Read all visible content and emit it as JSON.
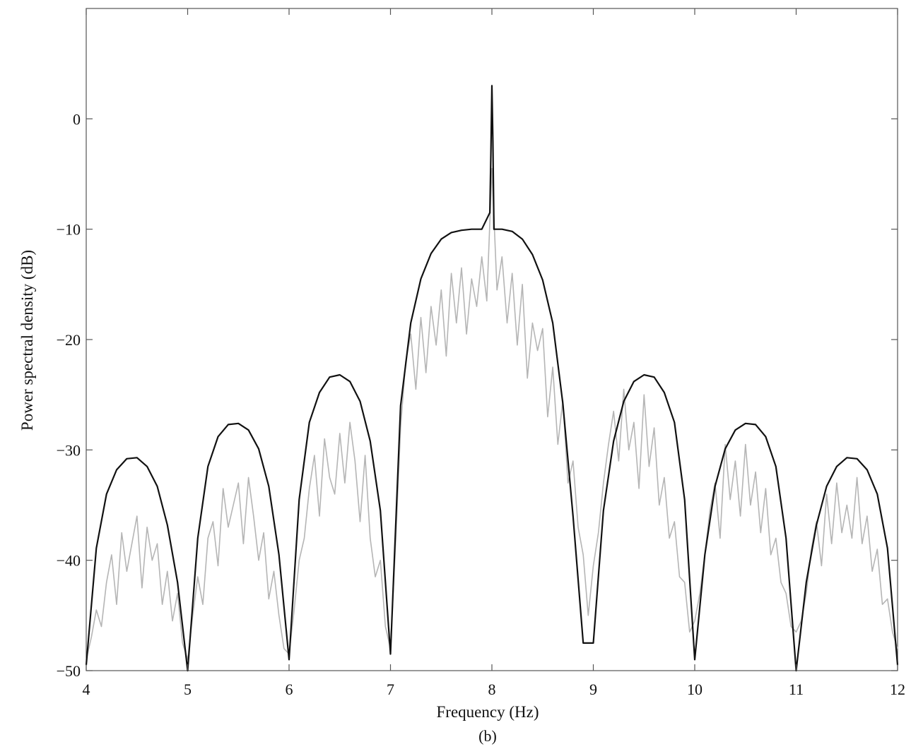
{
  "chart_data": {
    "type": "line",
    "xlabel": "Frequency (Hz)",
    "ylabel": "Power spectral density (dB)",
    "caption": "(b)",
    "xlim": [
      4,
      12
    ],
    "ylim": [
      -50,
      10
    ],
    "x_ticks": [
      4,
      5,
      6,
      7,
      8,
      9,
      10,
      11,
      12
    ],
    "y_ticks": [
      0,
      -10,
      -20,
      -30,
      -40,
      -50
    ],
    "x_tick_labels": [
      "4",
      "5",
      "6",
      "7",
      "8",
      "9",
      "10",
      "11",
      "12"
    ],
    "y_tick_labels": [
      "0",
      "−10",
      "−20",
      "−30",
      "−40",
      "−50"
    ],
    "grid": false,
    "colors": {
      "theoretical": "#111111",
      "estimate": "#b5b5b5",
      "axes": "#555555"
    },
    "series": [
      {
        "role": "theoretical",
        "x": [
          4.0,
          4.1,
          4.2,
          4.3,
          4.4,
          4.5,
          4.6,
          4.7,
          4.8,
          4.9,
          5.0,
          5.1,
          5.2,
          5.3,
          5.4,
          5.5,
          5.6,
          5.7,
          5.8,
          5.9,
          6.0,
          6.1,
          6.2,
          6.3,
          6.4,
          6.5,
          6.6,
          6.7,
          6.8,
          6.9,
          7.0,
          7.1,
          7.2,
          7.3,
          7.4,
          7.5,
          7.6,
          7.7,
          7.8,
          7.9,
          7.98,
          7.99,
          8.0,
          8.01,
          8.02,
          8.1,
          8.2,
          8.3,
          8.4,
          8.5,
          8.6,
          8.7,
          8.8,
          8.9,
          9.0,
          9.1,
          9.2,
          9.3,
          9.4,
          9.5,
          9.6,
          9.7,
          9.8,
          9.9,
          10.0,
          10.1,
          10.2,
          10.3,
          10.4,
          10.5,
          10.6,
          10.7,
          10.8,
          10.9,
          11.0,
          11.1,
          11.2,
          11.3,
          11.4,
          11.5,
          11.6,
          11.7,
          11.8,
          11.9,
          12.0
        ],
        "y": [
          -49.5,
          -38.9,
          -34.0,
          -31.8,
          -30.8,
          -30.7,
          -31.5,
          -33.3,
          -36.8,
          -42.0,
          -50.0,
          -38.0,
          -31.5,
          -28.8,
          -27.7,
          -27.6,
          -28.2,
          -29.9,
          -33.3,
          -39.5,
          -49.0,
          -34.5,
          -27.5,
          -24.8,
          -23.4,
          -23.2,
          -23.8,
          -25.6,
          -29.2,
          -35.5,
          -48.5,
          -26.0,
          -18.5,
          -14.5,
          -12.2,
          -10.9,
          -10.3,
          -10.1,
          -10.0,
          -10.0,
          -8.5,
          -3.0,
          3.0,
          -2.0,
          -10.0,
          -10.0,
          -10.2,
          -10.9,
          -12.3,
          -14.6,
          -18.5,
          -25.8,
          -36.0,
          -47.5,
          -47.5,
          -35.5,
          -29.2,
          -25.6,
          -23.8,
          -23.2,
          -23.4,
          -24.8,
          -27.5,
          -34.5,
          -49.0,
          -39.5,
          -33.3,
          -29.9,
          -28.2,
          -27.6,
          -27.7,
          -28.8,
          -31.5,
          -38.0,
          -50.0,
          -42.0,
          -36.8,
          -33.3,
          -31.5,
          -30.7,
          -30.8,
          -31.8,
          -34.0,
          -38.9,
          -49.5
        ]
      },
      {
        "role": "estimate",
        "x": [
          4.0,
          4.05,
          4.1,
          4.15,
          4.2,
          4.25,
          4.3,
          4.35,
          4.4,
          4.45,
          4.5,
          4.55,
          4.6,
          4.65,
          4.7,
          4.75,
          4.8,
          4.85,
          4.9,
          4.95,
          5.0,
          5.05,
          5.1,
          5.15,
          5.2,
          5.25,
          5.3,
          5.35,
          5.4,
          5.45,
          5.5,
          5.55,
          5.6,
          5.65,
          5.7,
          5.75,
          5.8,
          5.85,
          5.9,
          5.95,
          6.0,
          6.05,
          6.1,
          6.15,
          6.2,
          6.25,
          6.3,
          6.35,
          6.4,
          6.45,
          6.5,
          6.55,
          6.6,
          6.65,
          6.7,
          6.75,
          6.8,
          6.85,
          6.9,
          6.95,
          7.0,
          7.05,
          7.1,
          7.15,
          7.2,
          7.25,
          7.3,
          7.35,
          7.4,
          7.45,
          7.5,
          7.55,
          7.6,
          7.65,
          7.7,
          7.75,
          7.8,
          7.85,
          7.9,
          7.95,
          8.0,
          8.05,
          8.1,
          8.15,
          8.2,
          8.25,
          8.3,
          8.35,
          8.4,
          8.45,
          8.5,
          8.55,
          8.6,
          8.65,
          8.7,
          8.75,
          8.8,
          8.85,
          8.9,
          8.95,
          9.0,
          9.05,
          9.1,
          9.15,
          9.2,
          9.25,
          9.3,
          9.35,
          9.4,
          9.45,
          9.5,
          9.55,
          9.6,
          9.65,
          9.7,
          9.75,
          9.8,
          9.85,
          9.9,
          9.95,
          10.0,
          10.05,
          10.1,
          10.15,
          10.2,
          10.25,
          10.3,
          10.35,
          10.4,
          10.45,
          10.5,
          10.55,
          10.6,
          10.65,
          10.7,
          10.75,
          10.8,
          10.85,
          10.9,
          10.95,
          11.0,
          11.05,
          11.1,
          11.15,
          11.2,
          11.25,
          11.3,
          11.35,
          11.4,
          11.45,
          11.5,
          11.55,
          11.6,
          11.65,
          11.7,
          11.75,
          11.8,
          11.85,
          11.9,
          11.95,
          12.0
        ],
        "y": [
          -49.0,
          -47.0,
          -44.5,
          -46.0,
          -42.0,
          -39.5,
          -44.0,
          -37.5,
          -41.0,
          -38.5,
          -36.0,
          -42.5,
          -37.0,
          -40.0,
          -38.5,
          -44.0,
          -41.0,
          -45.5,
          -43.0,
          -47.5,
          -49.0,
          -45.0,
          -41.5,
          -44.0,
          -38.0,
          -36.5,
          -40.5,
          -33.5,
          -37.0,
          -35.0,
          -33.0,
          -38.5,
          -32.5,
          -36.0,
          -40.0,
          -37.5,
          -43.5,
          -41.0,
          -45.0,
          -48.0,
          -48.5,
          -44.5,
          -40.0,
          -38.0,
          -33.5,
          -30.5,
          -36.0,
          -29.0,
          -32.5,
          -34.0,
          -28.5,
          -33.0,
          -27.5,
          -31.0,
          -36.5,
          -30.5,
          -38.0,
          -41.5,
          -40.0,
          -46.0,
          -48.0,
          -38.5,
          -28.0,
          -22.0,
          -19.5,
          -24.5,
          -18.0,
          -23.0,
          -17.0,
          -20.5,
          -15.5,
          -21.5,
          -14.0,
          -18.5,
          -13.5,
          -19.5,
          -14.5,
          -17.0,
          -12.5,
          -16.5,
          -4.5,
          -15.5,
          -12.5,
          -18.5,
          -14.0,
          -20.5,
          -15.0,
          -23.5,
          -18.5,
          -21.0,
          -19.0,
          -27.0,
          -22.5,
          -29.5,
          -25.5,
          -33.0,
          -31.0,
          -37.0,
          -39.5,
          -45.0,
          -40.5,
          -37.5,
          -33.0,
          -29.5,
          -26.5,
          -31.0,
          -24.5,
          -30.0,
          -27.5,
          -33.5,
          -25.0,
          -31.5,
          -28.0,
          -35.0,
          -32.5,
          -38.0,
          -36.5,
          -41.5,
          -42.0,
          -46.5,
          -45.5,
          -43.0,
          -39.5,
          -35.5,
          -33.0,
          -38.0,
          -29.5,
          -34.5,
          -31.0,
          -36.0,
          -29.5,
          -35.0,
          -32.0,
          -37.5,
          -33.5,
          -39.5,
          -38.0,
          -42.0,
          -43.0,
          -46.0,
          -46.5,
          -45.5,
          -43.0,
          -39.0,
          -36.5,
          -40.5,
          -34.0,
          -38.5,
          -33.0,
          -37.5,
          -35.0,
          -38.0,
          -32.5,
          -38.5,
          -36.0,
          -41.0,
          -39.0,
          -44.0,
          -43.5,
          -46.5,
          -48.0
        ]
      }
    ]
  }
}
